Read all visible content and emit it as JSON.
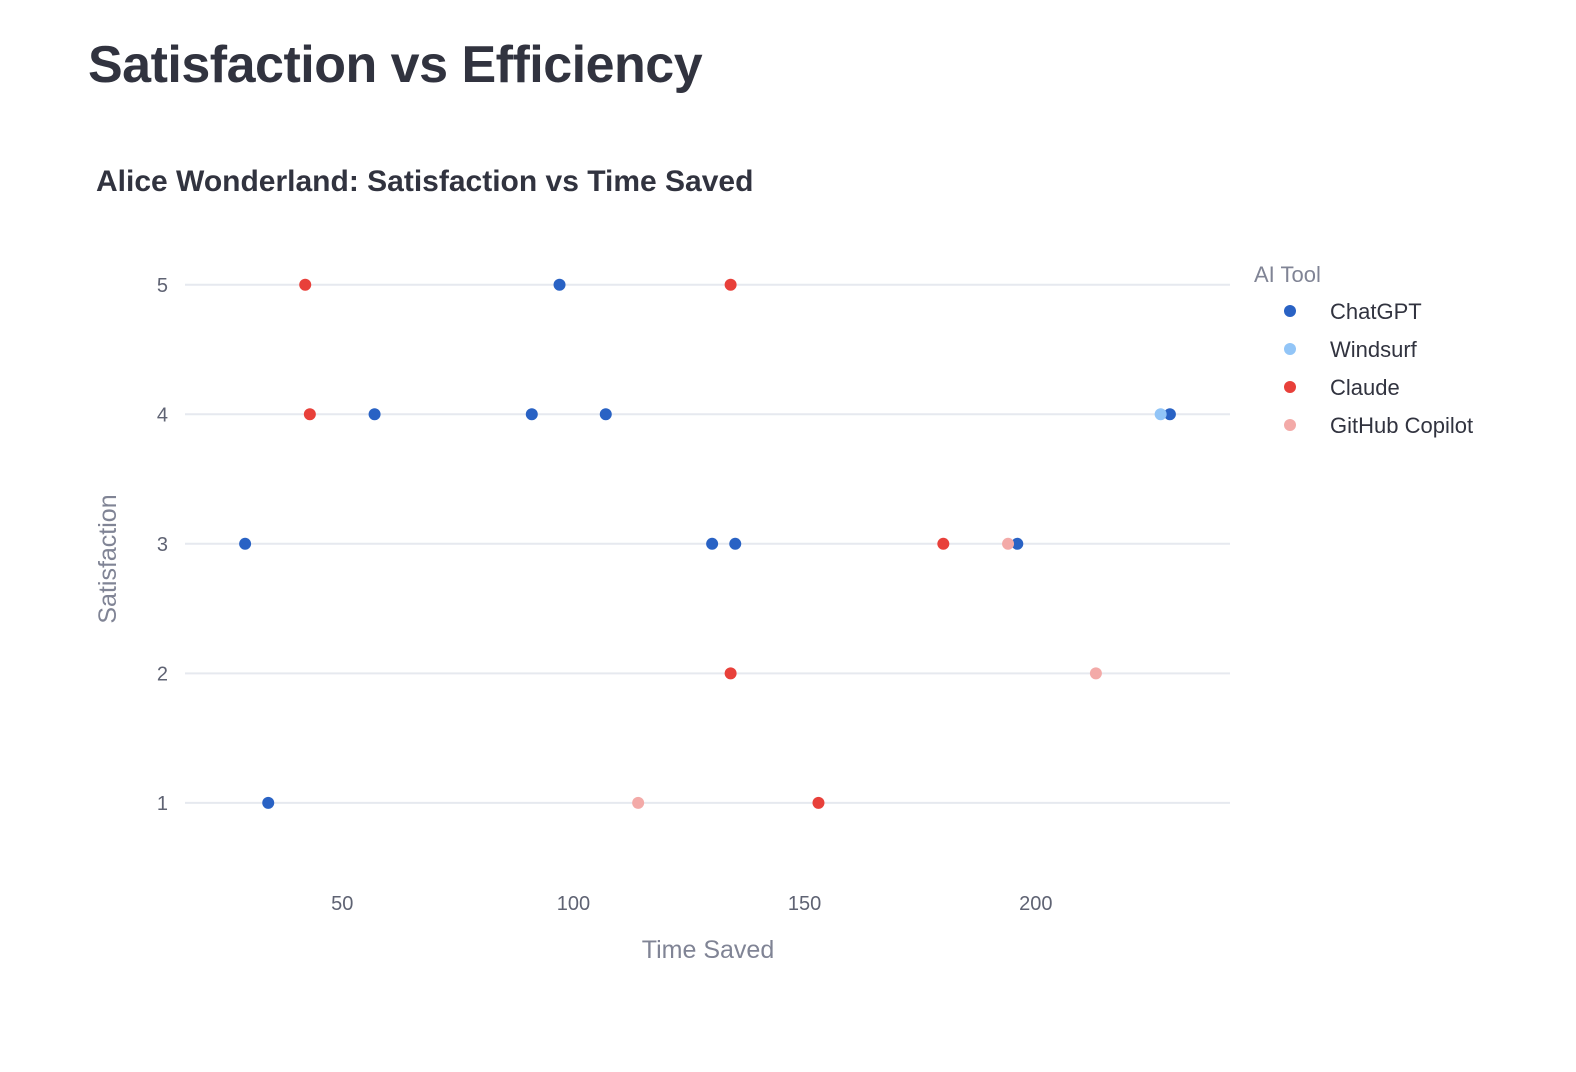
{
  "page": {
    "title": "Satisfaction vs Efficiency"
  },
  "chart_data": {
    "type": "scatter",
    "title": "Alice Wonderland: Satisfaction vs Time Saved",
    "xlabel": "Time Saved",
    "ylabel": "Satisfaction",
    "xlim": [
      16,
      242
    ],
    "ylim": [
      0.25,
      5.5
    ],
    "x_ticks": [
      50,
      100,
      150,
      200
    ],
    "y_ticks": [
      1,
      2,
      3,
      4,
      5
    ],
    "grid": "horizontal",
    "legend": {
      "title": "AI Tool",
      "placement": "right"
    },
    "series": [
      {
        "name": "ChatGPT",
        "color": "#2962c4",
        "points": [
          {
            "x": 97,
            "y": 5
          },
          {
            "x": 57,
            "y": 4
          },
          {
            "x": 91,
            "y": 4
          },
          {
            "x": 107,
            "y": 4
          },
          {
            "x": 229,
            "y": 4
          },
          {
            "x": 29,
            "y": 3
          },
          {
            "x": 130,
            "y": 3
          },
          {
            "x": 135,
            "y": 3
          },
          {
            "x": 196,
            "y": 3
          },
          {
            "x": 34,
            "y": 1
          }
        ]
      },
      {
        "name": "Windsurf",
        "color": "#92c5f7",
        "points": [
          {
            "x": 227,
            "y": 4
          }
        ]
      },
      {
        "name": "Claude",
        "color": "#e8403a",
        "points": [
          {
            "x": 42,
            "y": 5
          },
          {
            "x": 134,
            "y": 5
          },
          {
            "x": 43,
            "y": 4
          },
          {
            "x": 180,
            "y": 3
          },
          {
            "x": 134,
            "y": 2
          },
          {
            "x": 153,
            "y": 1
          }
        ]
      },
      {
        "name": "GitHub Copilot",
        "color": "#f3aaa8",
        "points": [
          {
            "x": 194,
            "y": 3
          },
          {
            "x": 213,
            "y": 2
          },
          {
            "x": 114,
            "y": 1
          }
        ]
      }
    ]
  }
}
